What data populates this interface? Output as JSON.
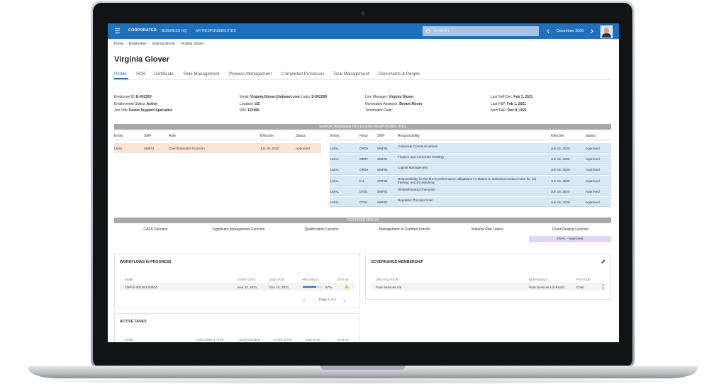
{
  "topbar": {
    "logo": "CORPORATER",
    "nav": [
      "BUSINESS HQ",
      "MY RESPONSIBILITIES"
    ],
    "search": "SEARCH",
    "period": "December 2020"
  },
  "breadcrumb": [
    "Home",
    "Employees",
    "Virginia Glover",
    "Virginia Glover"
  ],
  "title": "Virginia Glover",
  "tabs": [
    "Profile",
    "SOR",
    "Certificate",
    "Role Management",
    "Process Management",
    "Completed Processes",
    "Task Management",
    "Documents & People"
  ],
  "details": [
    [
      [
        {
          "label": "Employee ID:",
          "value": "E-002263"
        }
      ],
      [
        {
          "label": "Employment Status:",
          "value": "Active"
        }
      ],
      [
        {
          "label": "Job Title:",
          "value": "Dealer Support Specialist"
        }
      ]
    ],
    [
      [
        {
          "label": "Email:",
          "value": "Virginia.Glover@tobeset.com"
        },
        {
          "label": "Login:",
          "value": "E-002263"
        }
      ],
      [
        {
          "label": "Location:",
          "value": "US"
        }
      ],
      [
        {
          "label": "IRN:",
          "value": "123456"
        }
      ]
    ],
    [
      [
        {
          "label": "Line Manager:",
          "value": "Virginia Glover"
        }
      ],
      [
        {
          "label": "Nominated Assessor:",
          "value": "Bryant Moore"
        }
      ],
      [
        {
          "label": "Termination Date:"
        }
      ]
    ],
    [
      [
        {
          "label": "Last Self-Dec:",
          "value": "Feb 1, 2021"
        }
      ],
      [
        {
          "label": "Last F&P:",
          "value": "Feb 1, 2021"
        }
      ],
      [
        {
          "label": "Next F&P:",
          "value": "Dec 8, 2021"
        }
      ]
    ]
  ],
  "senior_manager": {
    "title": "SENIOR MANAGER ROLES AND RESPONSIBILITIES",
    "roles": {
      "columns": [
        "Entity",
        "SMF",
        "Role",
        "Effective",
        "Status"
      ],
      "rows": [
        [
          "LMAL",
          "SMF01",
          "Chief Executive Function",
          "Jun 16, 2020",
          "Approved"
        ]
      ]
    },
    "responsibilities": {
      "columns": [
        "Entity",
        "Resp",
        "SMF",
        "Responsibility",
        "Effective",
        "Status"
      ],
      "rows": [
        [
          "LMAL",
          "OR05",
          "SMF01",
          "Corporate Communications",
          "Jun 16, 2020",
          "Approved"
        ],
        [
          "LMAL",
          "OR07",
          "SMF01",
          "Finance and Corporate Strategy",
          "Jun 16, 2020",
          "Approved"
        ],
        [
          "LMAL",
          "OR08",
          "SMF01",
          "Capital Management",
          "Jun 16, 2020",
          "Approved"
        ],
        [
          "LMAL",
          "b-1",
          "SMF01",
          "Responsibility for the firm's performance obligations in relation to individual conduct rules for: (a) training; and (b) reporting",
          "Jun 16, 2020",
          "Approved"
        ],
        [
          "LMAL",
          "OT01",
          "SMF01",
          "Whistleblowing Champion",
          "Jun 16, 2020",
          "Approved"
        ],
        [
          "LMAL",
          "OT02",
          "SMF01",
          "Regulator Principal User",
          "Jun 16, 2020",
          "Approved"
        ]
      ]
    }
  },
  "certified": {
    "title": "CERTIFIED ROLES",
    "functions": [
      "CASS Function",
      "Significant Management Function",
      "Qualification Function",
      "Management of Certified Person",
      "Material Risk Takers",
      "Client Dealing Function"
    ],
    "status": "LMAL - Approved"
  },
  "workflows": {
    "title": "WORKFLOWS IN PROGRESS",
    "columns": [
      "NAME",
      "START DATE",
      "END DATE",
      "PROGRESS",
      "STATUS"
    ],
    "rows": [
      {
        "name": "TMP-E-002263-10004",
        "start": "Sep 23, 2021",
        "end": "Dec 16, 2021",
        "progress": {
          "value": 67,
          "label": "67%"
        }
      }
    ],
    "pagination": "Page 1 of 1"
  },
  "governance": {
    "title": "GOVERNANCE MEMBERSHIP",
    "columns": [
      "ORGANIZATION",
      "REFERENCE",
      "POSITION"
    ],
    "rows": [
      [
        "Pure Services Ltd",
        "Pure Services Ltd Board",
        "Chair"
      ]
    ]
  },
  "active_tasks": {
    "title": "ACTIVE TASKS",
    "columns": [
      "NAME",
      "ASSIGNMENT TYPE",
      "RESPONSIBLE",
      "START DATE",
      "END DATE",
      "STATUS"
    ]
  }
}
